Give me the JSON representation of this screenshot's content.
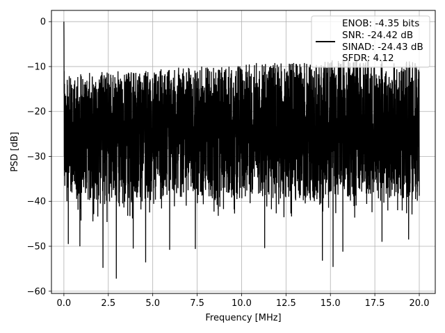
{
  "chart_data": {
    "type": "line",
    "title": "",
    "xlabel": "Frequency [MHz]",
    "ylabel": "PSD [dB]",
    "xlim": [
      -0.7,
      20.9
    ],
    "ylim": [
      -60.5,
      2.5
    ],
    "xticks": [
      0.0,
      2.5,
      5.0,
      7.5,
      10.0,
      12.5,
      15.0,
      17.5,
      20.0
    ],
    "xtick_labels": [
      "0.0",
      "2.5",
      "5.0",
      "7.5",
      "10.0",
      "12.5",
      "15.0",
      "17.5",
      "20.0"
    ],
    "yticks": [
      0,
      -10,
      -20,
      -30,
      -40,
      -50,
      -60
    ],
    "ytick_labels": [
      "0",
      "−10",
      "−20",
      "−30",
      "−40",
      "−50",
      "−60"
    ],
    "grid": true,
    "legend_position": "top-right",
    "legend": [
      "ENOB: -4.35 bits",
      "SNR: -24.42 dB",
      "SINAD: -24.43 dB",
      "SFDR: 4.12"
    ],
    "series": [
      {
        "color": "#000000",
        "x_start": 0.0,
        "x_end": 20.0,
        "peak": {
          "x": 0.0,
          "y": 0.0
        },
        "noise_floor_mean_db": -23.5,
        "envelope_top_db": [
          -12,
          -11,
          -11,
          -10,
          -10,
          -9,
          -9,
          -8.5,
          -8,
          -9
        ],
        "envelope_bottom_db": [
          -40,
          -41,
          -40,
          -39,
          -40,
          -39,
          -40,
          -40,
          -39,
          -40
        ],
        "deep_dips": [
          {
            "x": 0.25,
            "y": -49.5
          },
          {
            "x": 0.9,
            "y": -50.0
          },
          {
            "x": 2.2,
            "y": -54.8
          },
          {
            "x": 2.95,
            "y": -57.2
          },
          {
            "x": 3.9,
            "y": -50.5
          },
          {
            "x": 4.6,
            "y": -53.6
          },
          {
            "x": 5.95,
            "y": -50.8
          },
          {
            "x": 7.4,
            "y": -50.6
          },
          {
            "x": 11.3,
            "y": -50.4
          },
          {
            "x": 14.55,
            "y": -53.2
          },
          {
            "x": 15.15,
            "y": -54.6
          },
          {
            "x": 15.7,
            "y": -51.2
          },
          {
            "x": 17.9,
            "y": -49.0
          },
          {
            "x": 19.4,
            "y": -48.5
          }
        ]
      }
    ]
  }
}
